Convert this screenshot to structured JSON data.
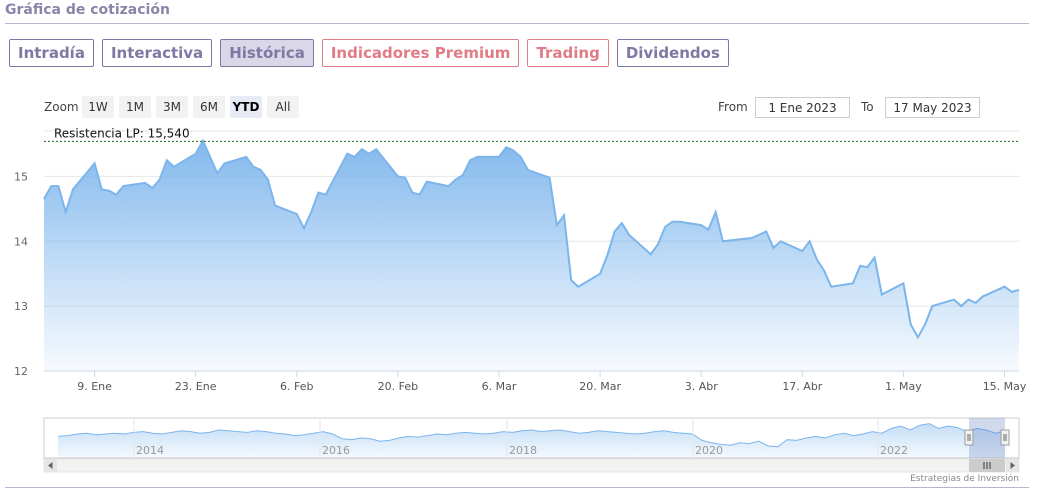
{
  "section": {
    "title": "Gráfica de cotización"
  },
  "tabs": [
    {
      "label": "Intradía"
    },
    {
      "label": "Interactiva"
    },
    {
      "label": "Histórica"
    },
    {
      "label": "Indicadores Premium"
    },
    {
      "label": "Trading"
    },
    {
      "label": "Dividendos"
    }
  ],
  "range_selector": {
    "zoom_label": "Zoom",
    "buttons": [
      "1W",
      "1M",
      "3M",
      "6M",
      "YTD",
      "All"
    ],
    "selected": "YTD",
    "from_label": "From",
    "from_value": "1 Ene 2023",
    "to_label": "To",
    "to_value": "17 May 2023"
  },
  "colors": {
    "line": "#7cb5ec",
    "tab": "#7d79a3",
    "premium": "#e07c87",
    "resistance": "#1a6a1a"
  },
  "chart_data": {
    "type": "area",
    "x_range": [
      "2023-01-02",
      "2023-05-17"
    ],
    "ylim": [
      12,
      15.7
    ],
    "yticks": [
      12,
      13,
      14,
      15
    ],
    "xtick_labels": [
      "9. Ene",
      "23. Ene",
      "6. Feb",
      "20. Feb",
      "6. Mar",
      "20. Mar",
      "3. Abr",
      "17. Abr",
      "1. May",
      "15. May"
    ],
    "xticks": [
      "2023-01-09",
      "2023-01-23",
      "2023-02-06",
      "2023-02-20",
      "2023-03-06",
      "2023-03-20",
      "2023-04-03",
      "2023-04-17",
      "2023-05-01",
      "2023-05-15"
    ],
    "resistance": {
      "label": "Resistencia LP: 15,540",
      "value": 15.54
    },
    "series": [
      {
        "x": [
          "2023-01-02",
          "2023-01-03",
          "2023-01-04",
          "2023-01-05",
          "2023-01-06",
          "2023-01-09",
          "2023-01-10",
          "2023-01-11",
          "2023-01-12",
          "2023-01-13",
          "2023-01-16",
          "2023-01-17",
          "2023-01-18",
          "2023-01-19",
          "2023-01-20",
          "2023-01-23",
          "2023-01-24",
          "2023-01-25",
          "2023-01-26",
          "2023-01-27",
          "2023-01-30",
          "2023-01-31",
          "2023-02-01",
          "2023-02-02",
          "2023-02-03",
          "2023-02-06",
          "2023-02-07",
          "2023-02-08",
          "2023-02-09",
          "2023-02-10",
          "2023-02-13",
          "2023-02-14",
          "2023-02-15",
          "2023-02-16",
          "2023-02-17",
          "2023-02-20",
          "2023-02-21",
          "2023-02-22",
          "2023-02-23",
          "2023-02-24",
          "2023-02-27",
          "2023-02-28",
          "2023-03-01",
          "2023-03-02",
          "2023-03-03",
          "2023-03-06",
          "2023-03-07",
          "2023-03-08",
          "2023-03-09",
          "2023-03-10",
          "2023-03-13",
          "2023-03-14",
          "2023-03-15",
          "2023-03-16",
          "2023-03-17",
          "2023-03-20",
          "2023-03-21",
          "2023-03-22",
          "2023-03-23",
          "2023-03-24",
          "2023-03-27",
          "2023-03-28",
          "2023-03-29",
          "2023-03-30",
          "2023-03-31",
          "2023-04-03",
          "2023-04-04",
          "2023-04-05",
          "2023-04-06",
          "2023-04-10",
          "2023-04-11",
          "2023-04-12",
          "2023-04-13",
          "2023-04-14",
          "2023-04-17",
          "2023-04-18",
          "2023-04-19",
          "2023-04-20",
          "2023-04-21",
          "2023-04-24",
          "2023-04-25",
          "2023-04-26",
          "2023-04-27",
          "2023-04-28",
          "2023-05-01",
          "2023-05-02",
          "2023-05-03",
          "2023-05-04",
          "2023-05-05",
          "2023-05-08",
          "2023-05-09",
          "2023-05-10",
          "2023-05-11",
          "2023-05-12",
          "2023-05-15",
          "2023-05-16",
          "2023-05-17"
        ],
        "y": [
          14.65,
          14.85,
          14.85,
          14.45,
          14.8,
          15.2,
          14.8,
          14.78,
          14.72,
          14.85,
          14.9,
          14.82,
          14.95,
          15.25,
          15.15,
          15.35,
          15.55,
          15.3,
          15.05,
          15.2,
          15.3,
          15.15,
          15.1,
          14.95,
          14.55,
          14.42,
          14.2,
          14.45,
          14.75,
          14.72,
          15.35,
          15.3,
          15.42,
          15.35,
          15.42,
          15.0,
          14.98,
          14.75,
          14.72,
          14.92,
          14.85,
          14.95,
          15.02,
          15.25,
          15.3,
          15.3,
          15.45,
          15.4,
          15.3,
          15.1,
          14.98,
          14.25,
          14.4,
          13.4,
          13.3,
          13.5,
          13.78,
          14.15,
          14.28,
          14.1,
          13.8,
          13.95,
          14.22,
          14.3,
          14.3,
          14.25,
          14.18,
          14.45,
          14.0,
          14.05,
          14.1,
          14.15,
          13.9,
          14.0,
          13.85,
          14.0,
          13.72,
          13.55,
          13.3,
          13.35,
          13.62,
          13.6,
          13.75,
          13.18,
          13.35,
          12.72,
          12.52,
          12.72,
          13.0,
          13.1,
          13.0,
          13.1,
          13.05,
          13.15,
          13.3,
          13.22,
          13.25
        ]
      }
    ],
    "navigator": {
      "year_labels": [
        "2014",
        "2016",
        "2018",
        "2020",
        "2022"
      ],
      "series": [
        14.2,
        14.3,
        14.5,
        14.6,
        14.4,
        14.5,
        14.6,
        14.5,
        14.7,
        14.8,
        14.6,
        14.5,
        14.7,
        14.9,
        14.8,
        14.6,
        14.7,
        15.0,
        14.9,
        14.8,
        14.7,
        14.9,
        14.8,
        14.6,
        14.5,
        14.3,
        14.4,
        14.6,
        14.8,
        14.5,
        13.9,
        13.8,
        14.0,
        13.9,
        13.6,
        13.7,
        14.0,
        14.2,
        14.1,
        14.3,
        14.5,
        14.4,
        14.6,
        14.7,
        14.6,
        14.5,
        14.6,
        14.8,
        14.7,
        14.9,
        15.0,
        14.8,
        14.9,
        15.0,
        14.8,
        14.6,
        14.7,
        14.9,
        14.8,
        14.7,
        14.6,
        14.5,
        14.6,
        14.8,
        14.9,
        14.7,
        14.6,
        14.5,
        13.7,
        13.4,
        13.2,
        13.1,
        13.4,
        13.3,
        13.6,
        13.0,
        12.9,
        13.8,
        13.7,
        14.0,
        14.2,
        14.0,
        14.4,
        14.6,
        14.3,
        14.5,
        14.8,
        14.6,
        15.2,
        15.5,
        15.0,
        15.6,
        15.8,
        15.2,
        15.5,
        15.3,
        14.8,
        15.2,
        15.0,
        14.6,
        14.9
      ]
    },
    "credit": "Estrategias de Inversión"
  }
}
